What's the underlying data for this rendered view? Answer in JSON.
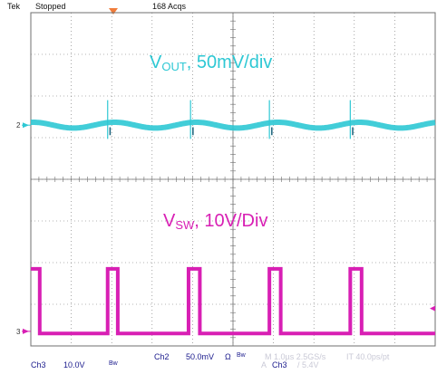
{
  "status": {
    "brand": "Tek",
    "state": "Stopped",
    "acqs": "168 Acqs"
  },
  "colors": {
    "vout": "#2ec8d4",
    "vsw": "#d81fb4",
    "grid": "#6f6f6f",
    "footer_text": "#1a1a8c"
  },
  "labels": {
    "vout_main": "V",
    "vout_sub": "OUT",
    "vout_rest": ", 50mV/div",
    "vsw_main": "V",
    "vsw_sub": "SW",
    "vsw_rest": ", 10V/Div"
  },
  "markers": {
    "ch2": "2",
    "ch3": "3"
  },
  "footer": {
    "ch2_label": "Ch2",
    "ch2_scale": "50.0mV",
    "ch2_ohm": "Ω",
    "bw1": "Bw",
    "ch3_label": "Ch3",
    "ch3_scale": "10.0V",
    "bw2": "Bw",
    "timebase": "M 1.0µs 2.5GS/s",
    "record": "IT 40.0ps/pt",
    "trig_src": "A",
    "trig_ch": "Ch3",
    "trig_level": "/ 5.4V"
  },
  "chart_data": {
    "type": "line",
    "title": "",
    "xlabel": "",
    "ylabel": "",
    "x_divisions": 10,
    "y_divisions": 8,
    "grid": true,
    "series": [
      {
        "name": "VOUT",
        "channel": "Ch2",
        "volts_per_div": "50mV",
        "baseline_div": 5.3,
        "ripple_amplitude_div": 0.07,
        "ripple_period_div": 2.02,
        "spike_times_div": [
          1.9,
          3.95,
          5.9,
          7.9
        ],
        "spike_height_div": 0.6
      },
      {
        "name": "VSW",
        "channel": "Ch3",
        "volts_per_div": "10V",
        "low_div": 0.3,
        "high_div": 1.85,
        "high_intervals_div": [
          [
            0.0,
            0.22
          ],
          [
            1.9,
            2.15
          ],
          [
            3.9,
            4.18
          ],
          [
            5.9,
            6.18
          ],
          [
            7.9,
            8.18
          ]
        ]
      }
    ]
  }
}
